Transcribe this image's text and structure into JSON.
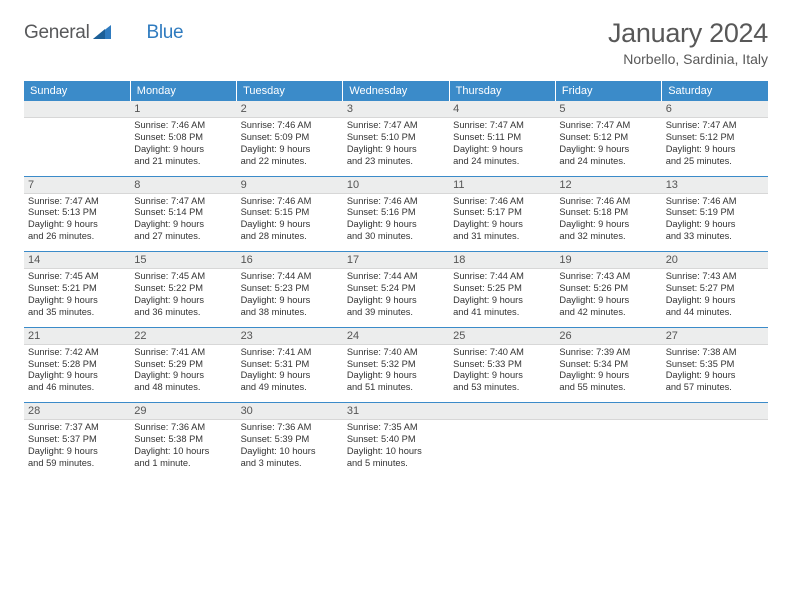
{
  "brand": {
    "word1": "General",
    "word2": "Blue"
  },
  "title": "January 2024",
  "location": "Norbello, Sardinia, Italy",
  "colors": {
    "header_bg": "#3b8bc9",
    "daynum_bg": "#eceded",
    "week_border": "#3b8bc9",
    "text": "#333333",
    "title_text": "#585858"
  },
  "weekdays": [
    "Sunday",
    "Monday",
    "Tuesday",
    "Wednesday",
    "Thursday",
    "Friday",
    "Saturday"
  ],
  "weeks": [
    [
      {
        "day": "",
        "lines": []
      },
      {
        "day": "1",
        "lines": [
          "Sunrise: 7:46 AM",
          "Sunset: 5:08 PM",
          "Daylight: 9 hours",
          "and 21 minutes."
        ]
      },
      {
        "day": "2",
        "lines": [
          "Sunrise: 7:46 AM",
          "Sunset: 5:09 PM",
          "Daylight: 9 hours",
          "and 22 minutes."
        ]
      },
      {
        "day": "3",
        "lines": [
          "Sunrise: 7:47 AM",
          "Sunset: 5:10 PM",
          "Daylight: 9 hours",
          "and 23 minutes."
        ]
      },
      {
        "day": "4",
        "lines": [
          "Sunrise: 7:47 AM",
          "Sunset: 5:11 PM",
          "Daylight: 9 hours",
          "and 24 minutes."
        ]
      },
      {
        "day": "5",
        "lines": [
          "Sunrise: 7:47 AM",
          "Sunset: 5:12 PM",
          "Daylight: 9 hours",
          "and 24 minutes."
        ]
      },
      {
        "day": "6",
        "lines": [
          "Sunrise: 7:47 AM",
          "Sunset: 5:12 PM",
          "Daylight: 9 hours",
          "and 25 minutes."
        ]
      }
    ],
    [
      {
        "day": "7",
        "lines": [
          "Sunrise: 7:47 AM",
          "Sunset: 5:13 PM",
          "Daylight: 9 hours",
          "and 26 minutes."
        ]
      },
      {
        "day": "8",
        "lines": [
          "Sunrise: 7:47 AM",
          "Sunset: 5:14 PM",
          "Daylight: 9 hours",
          "and 27 minutes."
        ]
      },
      {
        "day": "9",
        "lines": [
          "Sunrise: 7:46 AM",
          "Sunset: 5:15 PM",
          "Daylight: 9 hours",
          "and 28 minutes."
        ]
      },
      {
        "day": "10",
        "lines": [
          "Sunrise: 7:46 AM",
          "Sunset: 5:16 PM",
          "Daylight: 9 hours",
          "and 30 minutes."
        ]
      },
      {
        "day": "11",
        "lines": [
          "Sunrise: 7:46 AM",
          "Sunset: 5:17 PM",
          "Daylight: 9 hours",
          "and 31 minutes."
        ]
      },
      {
        "day": "12",
        "lines": [
          "Sunrise: 7:46 AM",
          "Sunset: 5:18 PM",
          "Daylight: 9 hours",
          "and 32 minutes."
        ]
      },
      {
        "day": "13",
        "lines": [
          "Sunrise: 7:46 AM",
          "Sunset: 5:19 PM",
          "Daylight: 9 hours",
          "and 33 minutes."
        ]
      }
    ],
    [
      {
        "day": "14",
        "lines": [
          "Sunrise: 7:45 AM",
          "Sunset: 5:21 PM",
          "Daylight: 9 hours",
          "and 35 minutes."
        ]
      },
      {
        "day": "15",
        "lines": [
          "Sunrise: 7:45 AM",
          "Sunset: 5:22 PM",
          "Daylight: 9 hours",
          "and 36 minutes."
        ]
      },
      {
        "day": "16",
        "lines": [
          "Sunrise: 7:44 AM",
          "Sunset: 5:23 PM",
          "Daylight: 9 hours",
          "and 38 minutes."
        ]
      },
      {
        "day": "17",
        "lines": [
          "Sunrise: 7:44 AM",
          "Sunset: 5:24 PM",
          "Daylight: 9 hours",
          "and 39 minutes."
        ]
      },
      {
        "day": "18",
        "lines": [
          "Sunrise: 7:44 AM",
          "Sunset: 5:25 PM",
          "Daylight: 9 hours",
          "and 41 minutes."
        ]
      },
      {
        "day": "19",
        "lines": [
          "Sunrise: 7:43 AM",
          "Sunset: 5:26 PM",
          "Daylight: 9 hours",
          "and 42 minutes."
        ]
      },
      {
        "day": "20",
        "lines": [
          "Sunrise: 7:43 AM",
          "Sunset: 5:27 PM",
          "Daylight: 9 hours",
          "and 44 minutes."
        ]
      }
    ],
    [
      {
        "day": "21",
        "lines": [
          "Sunrise: 7:42 AM",
          "Sunset: 5:28 PM",
          "Daylight: 9 hours",
          "and 46 minutes."
        ]
      },
      {
        "day": "22",
        "lines": [
          "Sunrise: 7:41 AM",
          "Sunset: 5:29 PM",
          "Daylight: 9 hours",
          "and 48 minutes."
        ]
      },
      {
        "day": "23",
        "lines": [
          "Sunrise: 7:41 AM",
          "Sunset: 5:31 PM",
          "Daylight: 9 hours",
          "and 49 minutes."
        ]
      },
      {
        "day": "24",
        "lines": [
          "Sunrise: 7:40 AM",
          "Sunset: 5:32 PM",
          "Daylight: 9 hours",
          "and 51 minutes."
        ]
      },
      {
        "day": "25",
        "lines": [
          "Sunrise: 7:40 AM",
          "Sunset: 5:33 PM",
          "Daylight: 9 hours",
          "and 53 minutes."
        ]
      },
      {
        "day": "26",
        "lines": [
          "Sunrise: 7:39 AM",
          "Sunset: 5:34 PM",
          "Daylight: 9 hours",
          "and 55 minutes."
        ]
      },
      {
        "day": "27",
        "lines": [
          "Sunrise: 7:38 AM",
          "Sunset: 5:35 PM",
          "Daylight: 9 hours",
          "and 57 minutes."
        ]
      }
    ],
    [
      {
        "day": "28",
        "lines": [
          "Sunrise: 7:37 AM",
          "Sunset: 5:37 PM",
          "Daylight: 9 hours",
          "and 59 minutes."
        ]
      },
      {
        "day": "29",
        "lines": [
          "Sunrise: 7:36 AM",
          "Sunset: 5:38 PM",
          "Daylight: 10 hours",
          "and 1 minute."
        ]
      },
      {
        "day": "30",
        "lines": [
          "Sunrise: 7:36 AM",
          "Sunset: 5:39 PM",
          "Daylight: 10 hours",
          "and 3 minutes."
        ]
      },
      {
        "day": "31",
        "lines": [
          "Sunrise: 7:35 AM",
          "Sunset: 5:40 PM",
          "Daylight: 10 hours",
          "and 5 minutes."
        ]
      },
      {
        "day": "",
        "lines": []
      },
      {
        "day": "",
        "lines": []
      },
      {
        "day": "",
        "lines": []
      }
    ]
  ]
}
